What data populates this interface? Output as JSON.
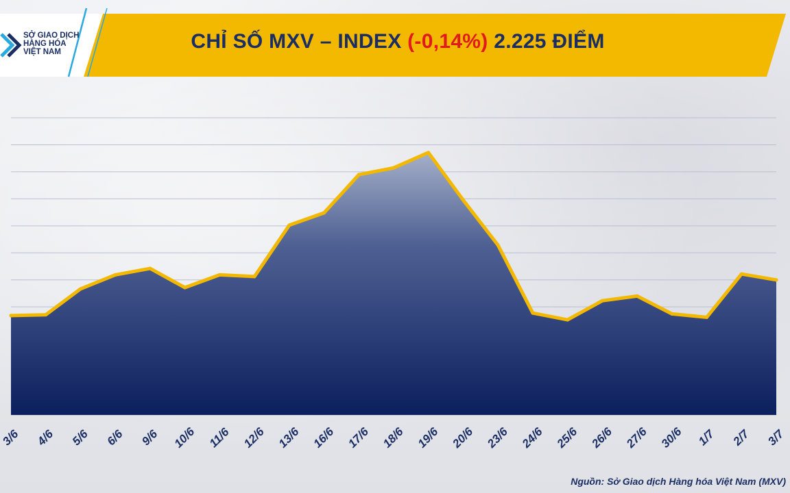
{
  "logo": {
    "line1": "SỞ GIAO DỊCH",
    "line2": "HÀNG HÓA",
    "line3": "VIỆT NAM",
    "colors": [
      "#2aa9df",
      "#1b2e63"
    ]
  },
  "header": {
    "title_prefix": "CHỈ SỐ MXV – INDEX ",
    "change": "(-0,14%)",
    "title_suffix": " 2.225 ĐIỂM",
    "banner_color": "#f3b800"
  },
  "source": "Nguồn: Sở Giao dịch Hàng hóa Việt Nam (MXV)",
  "chart_data": {
    "type": "area",
    "title": "CHỈ SỐ MXV – INDEX (-0,14%) 2.225 ĐIỂM",
    "categories": [
      "3/6",
      "4/6",
      "5/6",
      "6/6",
      "9/6",
      "10/6",
      "11/6",
      "12/6",
      "13/6",
      "16/6",
      "17/6",
      "18/6",
      "19/6",
      "20/6",
      "23/6",
      "24/6",
      "25/6",
      "26/6",
      "27/6",
      "30/6",
      "1/7",
      "2/7",
      "3/7"
    ],
    "series": [
      {
        "values": [
          1.7,
          1.8,
          4.85,
          6.5,
          7.25,
          5.0,
          6.5,
          6.3,
          12.35,
          13.8,
          18.3,
          19.1,
          20.9,
          15.3,
          10.0,
          2.0,
          1.2,
          3.45,
          4.0,
          1.9,
          1.5,
          6.6,
          5.9
        ]
      }
    ],
    "ylim": [
      -10,
      25
    ],
    "gridlines": 11,
    "grid": true,
    "legend": "none",
    "colors": {
      "line": "#f3b800",
      "fill_top": "#8c9bbc",
      "fill_bottom": "#0c1f5e",
      "grid": "#b8bfd3"
    }
  }
}
